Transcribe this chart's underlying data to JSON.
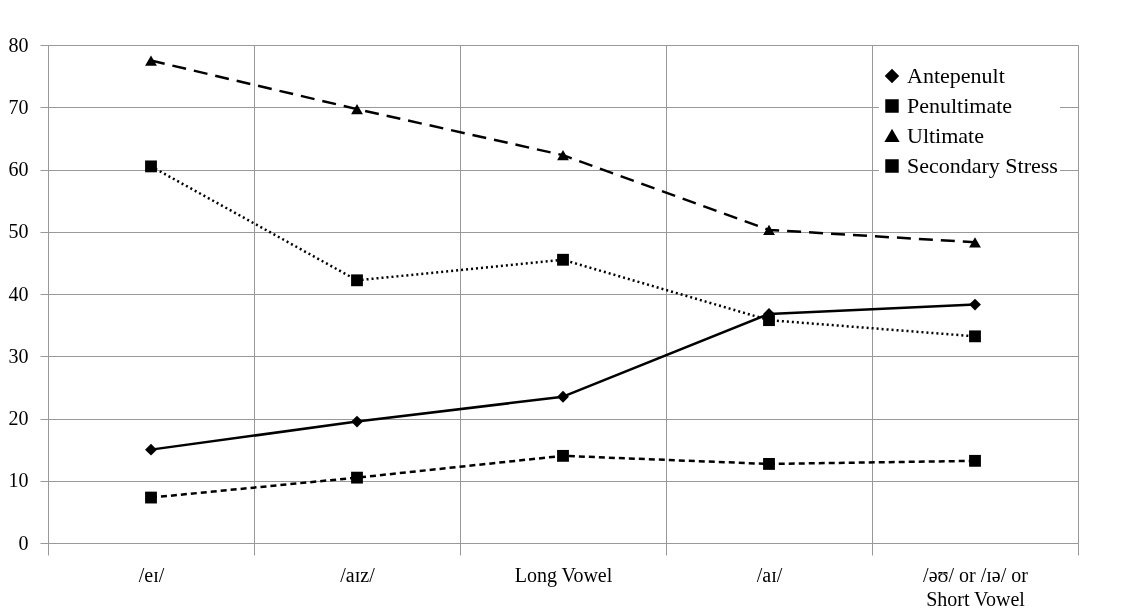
{
  "chart_data": {
    "type": "line",
    "categories": [
      "/eɪ/",
      "/aɪz/",
      "Long Vowel",
      "/aɪ/",
      "/əʊ/ or /ɪə/ or\nShort Vowel"
    ],
    "series": [
      {
        "name": "Antepenult",
        "color": "#000000",
        "marker": "diamond",
        "line_style": "solid",
        "values": [
          15.0,
          19.5,
          23.5,
          36.8,
          38.3
        ]
      },
      {
        "name": "Penultimate",
        "color": "#000000",
        "marker": "square",
        "line_style": "dashed",
        "values": [
          7.3,
          10.5,
          14.0,
          12.7,
          13.2
        ]
      },
      {
        "name": "Ultimate",
        "color": "#000000",
        "marker": "triangle",
        "line_style": "dashed",
        "values": [
          77.5,
          69.7,
          62.3,
          50.3,
          48.3
        ]
      },
      {
        "name": "Secondary Stress",
        "color": "#000000",
        "marker": "square",
        "line_style": "dotted",
        "values": [
          60.5,
          42.2,
          45.5,
          35.8,
          33.2
        ]
      }
    ],
    "ylim": [
      0,
      80
    ],
    "yticks": [
      0,
      10,
      20,
      30,
      40,
      50,
      60,
      70,
      80
    ],
    "grid": true,
    "legend": "top right"
  }
}
